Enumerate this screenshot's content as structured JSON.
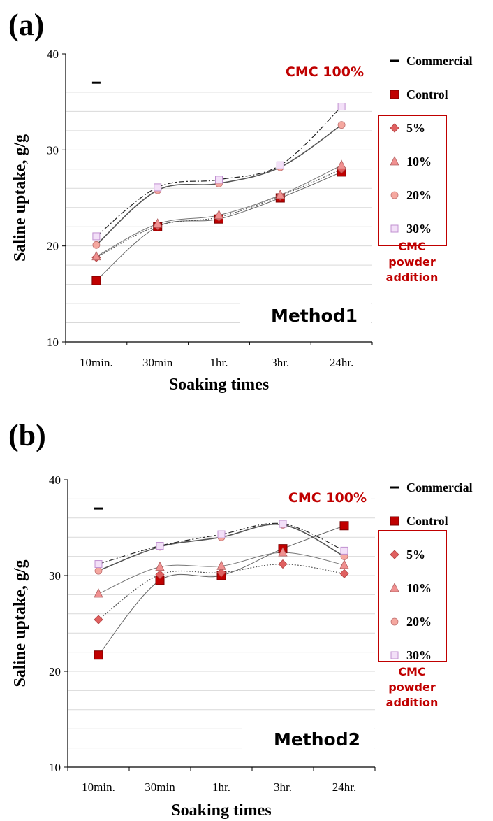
{
  "chart_data": [
    {
      "type": "line",
      "panel_label": "(a)",
      "method_label": "Method1",
      "annotation": "CMC 100%",
      "group_note": [
        "CMC",
        "powder",
        "addition"
      ],
      "xlabel": "Soaking times",
      "ylabel": "Saline uptake, g/g",
      "categories": [
        "10min.",
        "30min",
        "1hr.",
        "3hr.",
        "24hr."
      ],
      "ylim": [
        10,
        40
      ],
      "yticks": [
        10,
        20,
        30,
        40
      ],
      "grid": true,
      "legend_position": "right",
      "series": [
        {
          "name": "Commercial",
          "marker": "dash",
          "color": "#000000",
          "values": [
            37,
            null,
            null,
            null,
            null
          ]
        },
        {
          "name": "Control",
          "marker": "square",
          "color": "#c00000",
          "values": [
            16.4,
            22.0,
            22.8,
            25.0,
            27.7
          ]
        },
        {
          "name": "5%",
          "marker": "diamond",
          "color": "#e06060",
          "values": [
            18.8,
            22.1,
            23.0,
            25.2,
            28.0
          ]
        },
        {
          "name": "10%",
          "marker": "triangle",
          "color": "#f09090",
          "values": [
            18.9,
            22.3,
            23.2,
            25.3,
            28.4
          ]
        },
        {
          "name": "20%",
          "marker": "circle",
          "color": "#f5a8a0",
          "values": [
            20.1,
            25.8,
            26.5,
            28.2,
            32.6
          ]
        },
        {
          "name": "30%",
          "marker": "square-open",
          "color": "#e8b8f0",
          "values": [
            21.0,
            26.1,
            26.9,
            28.4,
            34.5
          ]
        }
      ]
    },
    {
      "type": "line",
      "panel_label": "(b)",
      "method_label": "Method2",
      "annotation": "CMC 100%",
      "group_note": [
        "CMC",
        "powder",
        "addition"
      ],
      "xlabel": "Soaking times",
      "ylabel": "Saline uptake, g/g",
      "categories": [
        "10min.",
        "30min",
        "1hr.",
        "3hr.",
        "24hr."
      ],
      "ylim": [
        10,
        40
      ],
      "yticks": [
        10,
        20,
        30,
        40
      ],
      "grid": true,
      "legend_position": "right",
      "series": [
        {
          "name": "Commercial",
          "marker": "dash",
          "color": "#000000",
          "values": [
            37,
            null,
            null,
            null,
            null
          ]
        },
        {
          "name": "Control",
          "marker": "square",
          "color": "#c00000",
          "values": [
            21.7,
            29.5,
            30.0,
            32.8,
            35.2
          ]
        },
        {
          "name": "5%",
          "marker": "diamond",
          "color": "#e06060",
          "values": [
            25.4,
            30.1,
            30.3,
            31.2,
            30.2
          ]
        },
        {
          "name": "10%",
          "marker": "triangle",
          "color": "#f09090",
          "values": [
            28.1,
            30.9,
            31.0,
            32.4,
            31.1
          ]
        },
        {
          "name": "20%",
          "marker": "circle",
          "color": "#f5a8a0",
          "values": [
            30.5,
            33.0,
            34.0,
            35.3,
            32.0
          ]
        },
        {
          "name": "30%",
          "marker": "square-open",
          "color": "#e8b8f0",
          "values": [
            31.2,
            33.1,
            34.3,
            35.4,
            32.6
          ]
        }
      ]
    }
  ]
}
